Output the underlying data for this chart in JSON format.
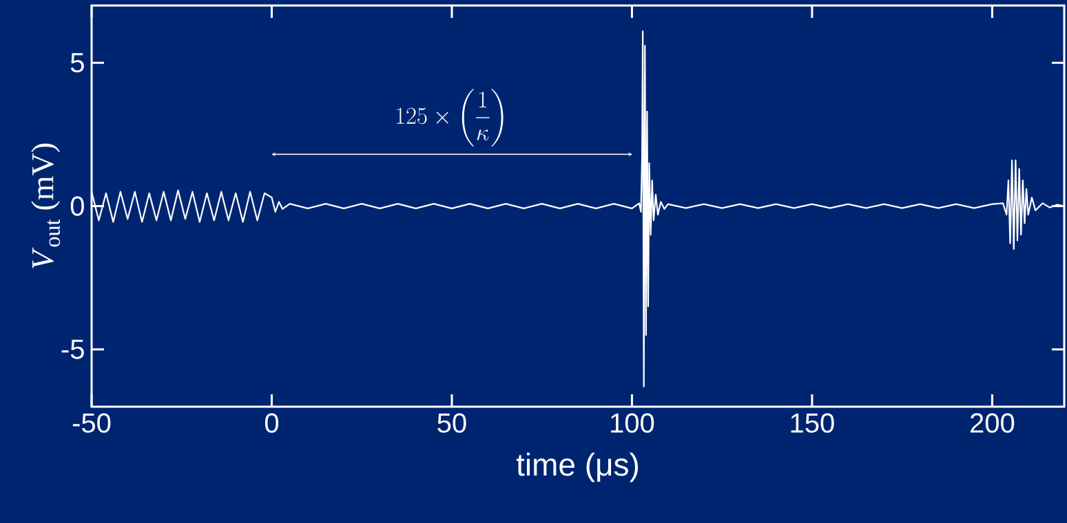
{
  "chart_data": {
    "type": "line",
    "xlabel": "time (μs)",
    "ylabel": "*V*$_{out}$ (mV)",
    "annotations": [
      "125\\times\\left(\\frac{1}{\\kappa}\\right)"
    ],
    "xlim": [
      -50,
      220
    ],
    "ylim": [
      -7,
      7
    ],
    "xticks": [
      -50,
      0,
      50,
      100,
      150,
      200
    ],
    "yticks": [
      -5,
      0,
      5
    ],
    "series": [
      {
        "color": "#ffffff",
        "x": [
          -50,
          -48,
          -46,
          -44,
          -42,
          -40,
          -38,
          -36,
          -34,
          -32,
          -30,
          -28,
          -26,
          -24,
          -22,
          -20,
          -18,
          -16,
          -14,
          -12,
          -10,
          -8,
          -6,
          -4,
          -2,
          0,
          1,
          2,
          3,
          5,
          10,
          15,
          20,
          25,
          30,
          35,
          40,
          45,
          50,
          55,
          60,
          65,
          70,
          75,
          80,
          85,
          90,
          95,
          100,
          102,
          102.5,
          102.8,
          103,
          103.3,
          103.6,
          103.9,
          104.2,
          104.5,
          104.8,
          105.2,
          105.6,
          106,
          106.6,
          107.2,
          108,
          109,
          110,
          115,
          120,
          125,
          130,
          135,
          140,
          145,
          150,
          155,
          160,
          165,
          170,
          175,
          180,
          185,
          190,
          195,
          200,
          203,
          204,
          204.5,
          205,
          205.5,
          206,
          206.5,
          207,
          207.5,
          208,
          208.5,
          209,
          209.5,
          210,
          211,
          212,
          214,
          216,
          218,
          220
        ],
        "values": [
          0.5,
          -0.5,
          0.45,
          -0.55,
          0.5,
          -0.45,
          0.5,
          -0.55,
          0.45,
          -0.5,
          0.5,
          -0.5,
          0.55,
          -0.45,
          0.5,
          -0.55,
          0.45,
          -0.5,
          0.5,
          -0.5,
          0.45,
          -0.55,
          0.5,
          -0.5,
          0.45,
          0.3,
          -0.2,
          0.15,
          -0.1,
          0.08,
          -0.08,
          0.08,
          -0.08,
          0.08,
          -0.08,
          0.08,
          -0.08,
          0.08,
          -0.08,
          0.08,
          -0.08,
          0.08,
          -0.08,
          0.08,
          -0.08,
          0.08,
          -0.08,
          0.08,
          -0.08,
          0.1,
          -0.2,
          1.7,
          6.1,
          -6.3,
          5.6,
          -4.5,
          3.3,
          -3.5,
          1.5,
          -1.0,
          0.9,
          -0.5,
          0.4,
          -0.3,
          0.15,
          -0.1,
          0.07,
          -0.07,
          0.07,
          -0.07,
          0.07,
          -0.07,
          0.07,
          -0.07,
          0.07,
          -0.07,
          0.07,
          -0.07,
          0.07,
          -0.07,
          0.07,
          -0.07,
          0.07,
          -0.07,
          0.07,
          0.1,
          -0.3,
          0.9,
          -1.3,
          1.6,
          -1.5,
          1.6,
          -1.2,
          1.3,
          -1.0,
          0.9,
          -0.6,
          0.6,
          -0.3,
          0.3,
          -0.15,
          0.1,
          -0.05,
          0.05,
          0
        ]
      }
    ]
  }
}
